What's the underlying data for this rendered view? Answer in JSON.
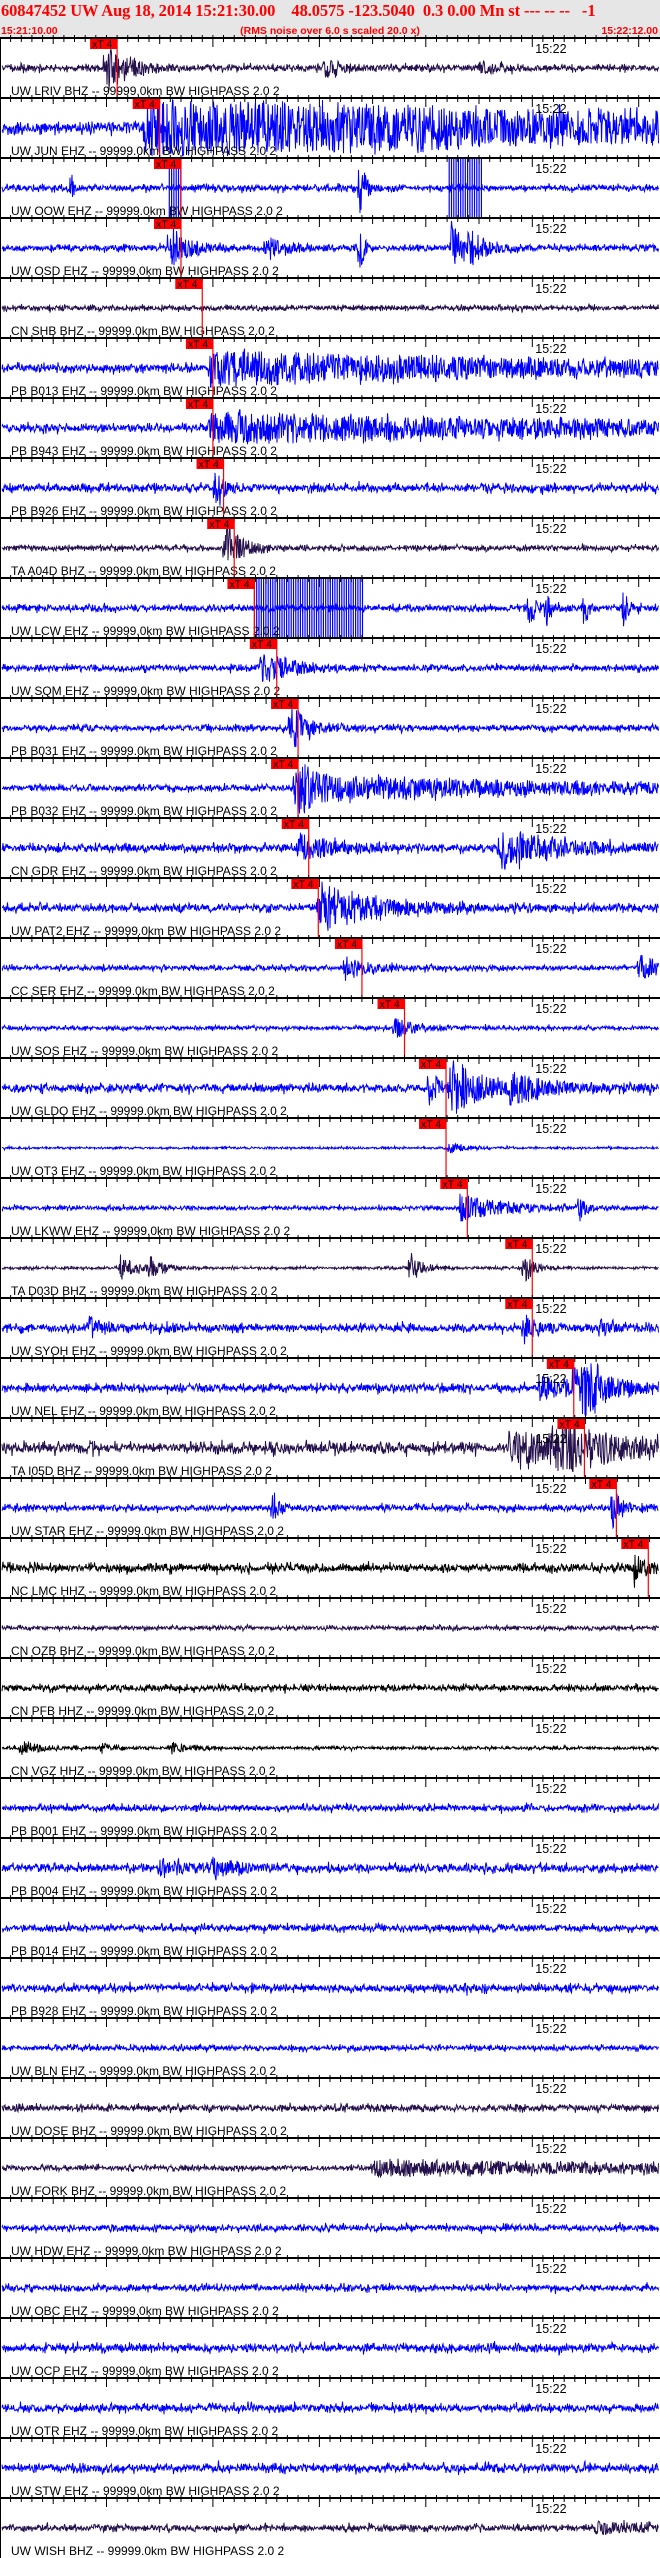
{
  "header": {
    "title": "60847452 UW Aug 18, 2014 15:21:30.00    48.0575 -123.5040  0.3 0.00 Mn st --- -- --   -1",
    "start_time": "15:21:10.00",
    "end_time": "15:22:12.00",
    "note": "(RMS noise over 6.0 s scaled 20.0 x)"
  },
  "minute_label": "15:22",
  "colors": {
    "header_text": "#ff0000",
    "header_bg": "#e6e6e6",
    "pick": "#ff0000",
    "blue": "#0000ff",
    "purple": "#24104c",
    "black": "#000000"
  },
  "chart_data": {
    "type": "line",
    "xlim": [
      "15:21:10.00",
      "15:22:12.00"
    ],
    "grid": false,
    "traces": [
      {
        "label": "UW LRIV BHZ -- 99999.0km BW  HIGHPASS  2.0  2",
        "color": "purple",
        "pick_label": "xT 4",
        "pick_time": "15:21:21.0",
        "noise": 0.12,
        "events": [
          [
            "15:21:19.9",
            0.85,
            2
          ],
          [
            "15:21:40.5",
            0.3,
            2
          ],
          [
            "15:21:55.0",
            0.2,
            2
          ]
        ]
      },
      {
        "label": "UW JUN EHZ -- 99999.0km BW  HIGHPASS  2.0  2",
        "color": "blue",
        "pick_label": "xT 4",
        "pick_time": "15:21:25.0",
        "noise": 0.22,
        "events": [
          [
            "15:21:23.6",
            0.95,
            60
          ]
        ]
      },
      {
        "label": "UW OOW EHZ -- 99999.0km BW  HIGHPASS  2.0  2",
        "color": "blue",
        "pick_label": "xT 4",
        "pick_time": "15:21:27.0",
        "noise": 0.12,
        "events": [
          [
            "15:21:16.6",
            0.6,
            0.3
          ],
          [
            "15:21:43.8",
            1.0,
            0.5
          ]
        ],
        "clipped": [
          [
            "15:21:25.9",
            1.2
          ],
          [
            "15:21:52.2",
            3.2
          ]
        ]
      },
      {
        "label": "UW OSD EHZ -- 99999.0km BW  HIGHPASS  2.0  2",
        "color": "blue",
        "pick_label": "xT 4",
        "pick_time": "15:21:27.0",
        "noise": 0.12,
        "events": [
          [
            "15:21:25.9",
            0.9,
            1.5
          ],
          [
            "15:21:34.9",
            0.35,
            2
          ],
          [
            "15:21:43.8",
            1.0,
            0.4
          ],
          [
            "15:21:52.4",
            1.0,
            1
          ],
          [
            "15:21:54.1",
            0.5,
            1.5
          ]
        ]
      },
      {
        "label": "CN SHB BHZ -- 99999.0km BW  HIGHPASS  2.0  2",
        "color": "purple",
        "pick_label": "xT 4",
        "pick_time": "15:21:29.0",
        "noise": 0.1,
        "events": []
      },
      {
        "label": "PB B013 EHZ -- 99999.0km BW  HIGHPASS  2.0  2",
        "color": "blue",
        "pick_label": "xT 4",
        "pick_time": "15:21:30.0",
        "noise": 0.15,
        "events": [
          [
            "15:21:29.7",
            0.55,
            40
          ]
        ]
      },
      {
        "label": "PB B943 EHZ -- 99999.0km BW  HIGHPASS  2.0  2",
        "color": "blue",
        "pick_label": "xT 4",
        "pick_time": "15:21:30.0",
        "noise": 0.15,
        "events": [
          [
            "15:21:29.7",
            0.5,
            40
          ]
        ]
      },
      {
        "label": "PB B926 EHZ -- 99999.0km BW  HIGHPASS  2.0  2",
        "color": "blue",
        "pick_label": "xT 4",
        "pick_time": "15:21:31.0",
        "noise": 0.15,
        "events": [
          [
            "15:21:30.2",
            0.9,
            0.6
          ]
        ]
      },
      {
        "label": "TA A04D BHZ -- 99999.0km BW  HIGHPASS  2.0  2",
        "color": "purple",
        "pick_label": "xT 4",
        "pick_time": "15:21:32.0",
        "noise": 0.1,
        "events": [
          [
            "15:21:31.1",
            0.9,
            1.5
          ]
        ]
      },
      {
        "label": "UW LCW EHZ -- 99999.0km BW  HIGHPASS  2.0  2",
        "color": "blue",
        "pick_label": "xT 4",
        "pick_time": "15:21:33.9",
        "noise": 0.12,
        "events": [
          [
            "15:21:59.7",
            0.8,
            0.5
          ],
          [
            "15:22:01.2",
            0.8,
            0.5
          ],
          [
            "15:22:04.8",
            0.7,
            0.5
          ],
          [
            "15:22:08.5",
            0.7,
            0.5
          ]
        ],
        "clipped": [
          [
            "15:21:33.9",
            10.3
          ]
        ]
      },
      {
        "label": "UW SQM EHZ -- 99999.0km BW  HIGHPASS  2.0  2",
        "color": "blue",
        "pick_label": "xT 4",
        "pick_time": "15:21:36.0",
        "noise": 0.12,
        "events": [
          [
            "15:21:34.6",
            0.6,
            2.5
          ]
        ]
      },
      {
        "label": "PB B031 EHZ -- 99999.0km BW  HIGHPASS  2.0  2",
        "color": "blue",
        "pick_label": "xT 4",
        "pick_time": "15:21:38.0",
        "noise": 0.12,
        "events": [
          [
            "15:21:37.2",
            0.9,
            1.5
          ]
        ]
      },
      {
        "label": "PB B032 EHZ -- 99999.0km BW  HIGHPASS  2.0  2",
        "color": "blue",
        "pick_label": "xT 4",
        "pick_time": "15:21:38.0",
        "noise": 0.12,
        "events": [
          [
            "15:21:37.7",
            0.9,
            1
          ],
          [
            "15:21:38.1",
            0.45,
            25
          ]
        ]
      },
      {
        "label": "CN GDR EHZ -- 99999.0km BW  HIGHPASS  2.0  2",
        "color": "blue",
        "pick_label": "xT 4",
        "pick_time": "15:21:39.0",
        "noise": 0.15,
        "events": [
          [
            "15:21:38.1",
            0.5,
            3
          ],
          [
            "15:21:56.9",
            0.7,
            5
          ]
        ]
      },
      {
        "label": "UW PAT2 EHZ -- 99999.0km BW  HIGHPASS  2.0  2",
        "color": "blue",
        "pick_label": "xT 4",
        "pick_time": "15:21:39.9",
        "noise": 0.15,
        "events": [
          [
            "15:21:40.0",
            0.85,
            5
          ]
        ]
      },
      {
        "label": "CC SER EHZ -- 99999.0km BW  HIGHPASS  2.0  2",
        "color": "blue",
        "pick_label": "xT 4",
        "pick_time": "15:21:44.0",
        "noise": 0.1,
        "events": [
          [
            "15:21:42.4",
            0.4,
            2
          ],
          [
            "15:22:10.0",
            0.45,
            2
          ]
        ]
      },
      {
        "label": "UW SOS EHZ -- 99999.0km BW  HIGHPASS  2.0  2",
        "color": "blue",
        "pick_label": "xT 4",
        "pick_time": "15:21:48.0",
        "noise": 0.08,
        "events": [
          [
            "15:21:47.1",
            0.35,
            2
          ]
        ]
      },
      {
        "label": "UW GLDO EHZ -- 99999.0km BW  HIGHPASS  2.0  2",
        "color": "blue",
        "pick_label": "xT 4",
        "pick_time": "15:21:51.9",
        "noise": 0.15,
        "events": [
          [
            "15:21:50.3",
            0.6,
            1
          ],
          [
            "15:21:52.2",
            1.0,
            3
          ],
          [
            "15:21:57.8",
            0.5,
            3
          ]
        ]
      },
      {
        "label": "UW OT3 EHZ -- 99999.0km BW  HIGHPASS  2.0  2",
        "color": "blue",
        "pick_label": "xT 4",
        "pick_time": "15:21:51.9",
        "noise": 0.04,
        "events": [
          [
            "15:21:52.2",
            0.2,
            1.5
          ]
        ]
      },
      {
        "label": "UW LKWW EHZ -- 99999.0km BW  HIGHPASS  2.0  2",
        "color": "blue",
        "pick_label": "xT 4",
        "pick_time": "15:21:53.9",
        "noise": 0.08,
        "events": [
          [
            "15:21:53.2",
            0.5,
            4
          ],
          [
            "15:22:04.4",
            0.6,
            0.5
          ]
        ]
      },
      {
        "label": "TA D03D BHZ -- 99999.0km BW  HIGHPASS  2.0  2",
        "color": "purple",
        "pick_label": "xT 4",
        "pick_time": "15:22:00.0",
        "noise": 0.05,
        "events": [
          [
            "15:21:21.3",
            0.5,
            1.5
          ],
          [
            "15:21:24.1",
            0.4,
            1
          ],
          [
            "15:21:48.5",
            0.6,
            1
          ],
          [
            "15:21:59.2",
            0.6,
            1
          ]
        ]
      },
      {
        "label": "UW SYOH EHZ -- 99999.0km BW  HIGHPASS  2.0  2",
        "color": "blue",
        "pick_label": "xT 4",
        "pick_time": "15:22:00.0",
        "noise": 0.15,
        "events": [
          [
            "15:21:18.4",
            0.5,
            1
          ],
          [
            "15:21:59.2",
            0.4,
            1.5
          ],
          [
            "15:22:06.3",
            0.4,
            1
          ]
        ]
      },
      {
        "label": "UW NEL EHZ -- 99999.0km BW  HIGHPASS  2.0  2",
        "color": "blue",
        "pick_label": "xT 4",
        "pick_time": "15:22:03.9",
        "noise": 0.15,
        "events": [
          [
            "15:22:00.7",
            0.4,
            3
          ],
          [
            "15:22:03.9",
            1.0,
            1
          ],
          [
            "15:22:04.9",
            1.0,
            2
          ]
        ]
      },
      {
        "label": "TA I05D BHZ -- 99999.0km BW  HIGHPASS  2.0  2",
        "color": "purple",
        "pick_label": "xT 4",
        "pick_time": "15:22:04.9",
        "noise": 0.2,
        "events": [
          [
            "15:21:57.8",
            0.5,
            15
          ],
          [
            "15:22:02.0",
            0.7,
            3
          ]
        ]
      },
      {
        "label": "UW STAR EHZ -- 99999.0km BW  HIGHPASS  2.0  2",
        "color": "blue",
        "pick_label": "xT 4",
        "pick_time": "15:22:07.9",
        "noise": 0.12,
        "events": [
          [
            "15:21:35.6",
            0.8,
            0.4
          ],
          [
            "15:22:07.5",
            0.7,
            1
          ]
        ]
      },
      {
        "label": "NC LMC HHZ -- 99999.0km BW  HIGHPASS  2.0  2",
        "color": "black",
        "pick_label": "xT 4",
        "pick_time": "15:22:10.9",
        "noise": 0.15,
        "events": [
          [
            "15:22:09.6",
            0.6,
            1
          ]
        ]
      },
      {
        "label": "CN OZB BHZ -- 99999.0km BW  HIGHPASS  2.0  2",
        "color": "purple",
        "noise": 0.08,
        "events": []
      },
      {
        "label": "CN PFB HHZ -- 99999.0km BW  HIGHPASS  2.0  2",
        "color": "black",
        "noise": 0.12,
        "events": []
      },
      {
        "label": "CN VGZ HHZ -- 99999.0km BW  HIGHPASS  2.0  2",
        "color": "black",
        "noise": 0.06,
        "events": [
          [
            "15:21:12.0",
            0.25,
            1.5
          ],
          [
            "15:21:19.5",
            0.2,
            1
          ],
          [
            "15:21:26.0",
            0.2,
            1.5
          ]
        ]
      },
      {
        "label": "PB B001 EHZ -- 99999.0km BW  HIGHPASS  2.0  2",
        "color": "blue",
        "noise": 0.12,
        "events": []
      },
      {
        "label": "PB B004 EHZ -- 99999.0km BW  HIGHPASS  2.0  2",
        "color": "blue",
        "noise": 0.15,
        "events": [
          [
            "15:21:25.0",
            0.3,
            2
          ],
          [
            "15:21:30.0",
            0.3,
            2
          ]
        ]
      },
      {
        "label": "PB B014 EHZ -- 99999.0km BW  HIGHPASS  2.0  2",
        "color": "blue",
        "noise": 0.13,
        "events": []
      },
      {
        "label": "PB B928 EHZ -- 99999.0km BW  HIGHPASS  2.0  2",
        "color": "blue",
        "noise": 0.15,
        "events": []
      },
      {
        "label": "UW BLN EHZ -- 99999.0km BW  HIGHPASS  2.0  2",
        "color": "blue",
        "noise": 0.1,
        "events": []
      },
      {
        "label": "UW DOSE BHZ -- 99999.0km BW  HIGHPASS  2.0  2",
        "color": "purple",
        "noise": 0.12,
        "events": []
      },
      {
        "label": "UW FORK BHZ -- 99999.0km BW  HIGHPASS  2.0  2",
        "color": "purple",
        "noise": 0.1,
        "events": [
          [
            "15:21:45.0",
            0.25,
            30
          ]
        ]
      },
      {
        "label": "UW HDW EHZ -- 99999.0km BW  HIGHPASS  2.0  2",
        "color": "blue",
        "noise": 0.12,
        "events": []
      },
      {
        "label": "UW OBC EHZ -- 99999.0km BW  HIGHPASS  2.0  2",
        "color": "blue",
        "noise": 0.12,
        "events": []
      },
      {
        "label": "UW OCP EHZ -- 99999.0km BW  HIGHPASS  2.0  2",
        "color": "blue",
        "noise": 0.15,
        "events": []
      },
      {
        "label": "UW OTR EHZ -- 99999.0km BW  HIGHPASS  2.0  2",
        "color": "blue",
        "noise": 0.15,
        "events": []
      },
      {
        "label": "UW STW EHZ -- 99999.0km BW  HIGHPASS  2.0  2",
        "color": "blue",
        "noise": 0.15,
        "events": []
      },
      {
        "label": "UW WISH BHZ -- 99999.0km BW  HIGHPASS  2.0  2",
        "color": "purple",
        "noise": 0.12,
        "events": [
          [
            "15:22:06.0",
            0.2,
            4
          ]
        ]
      }
    ]
  }
}
